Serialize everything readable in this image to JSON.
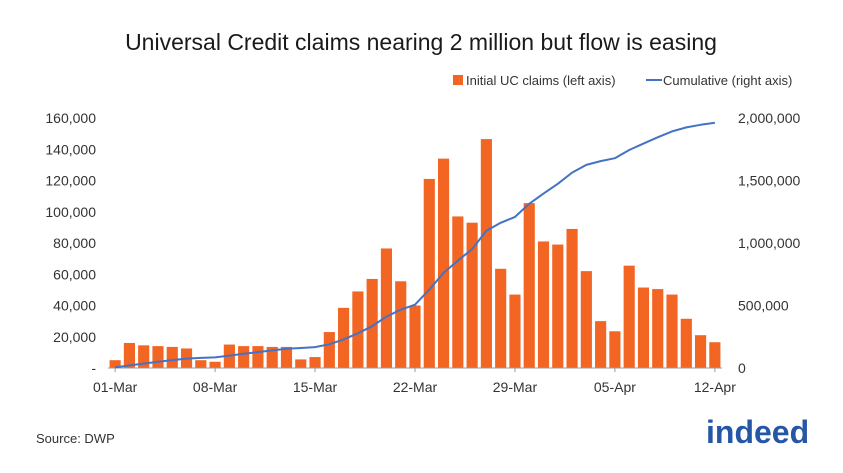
{
  "chart_data": {
    "type": "bar",
    "title": "Universal Credit claims nearing 2 million but flow is easing",
    "source": "Source: DWP",
    "logo_text": "indeed",
    "legend": [
      "Initial UC claims (left axis)",
      "Cumulative (right axis)"
    ],
    "legend_position": "top-right",
    "x_tick_labels": [
      "01-Mar",
      "08-Mar",
      "15-Mar",
      "22-Mar",
      "29-Mar",
      "05-Apr",
      "12-Apr"
    ],
    "left_axis": {
      "ylim": [
        0,
        160000
      ],
      "tick_labels": [
        "-",
        "20,000",
        "40,000",
        "60,000",
        "80,000",
        "100,000",
        "120,000",
        "140,000",
        "160,000"
      ]
    },
    "right_axis": {
      "ylim": [
        0,
        2000000
      ],
      "tick_labels": [
        "0",
        "500,000",
        "1,000,000",
        "1,500,000",
        "2,000,000"
      ]
    },
    "categories": [
      "01-Mar",
      "02-Mar",
      "03-Mar",
      "04-Mar",
      "05-Mar",
      "06-Mar",
      "07-Mar",
      "08-Mar",
      "09-Mar",
      "10-Mar",
      "11-Mar",
      "12-Mar",
      "13-Mar",
      "14-Mar",
      "15-Mar",
      "16-Mar",
      "17-Mar",
      "18-Mar",
      "19-Mar",
      "20-Mar",
      "21-Mar",
      "22-Mar",
      "23-Mar",
      "24-Mar",
      "25-Mar",
      "26-Mar",
      "27-Mar",
      "28-Mar",
      "29-Mar",
      "30-Mar",
      "31-Mar",
      "01-Apr",
      "02-Apr",
      "03-Apr",
      "04-Apr",
      "05-Apr",
      "06-Apr",
      "07-Apr",
      "08-Apr",
      "09-Apr",
      "10-Apr",
      "11-Apr",
      "12-Apr"
    ],
    "series": [
      {
        "name": "Initial UC claims (left axis)",
        "type": "bar",
        "axis": "left",
        "color": "#f26522",
        "values": [
          5000,
          16000,
          14500,
          14000,
          13500,
          12500,
          5000,
          4000,
          15000,
          14000,
          14000,
          13500,
          13500,
          5500,
          7000,
          23000,
          38500,
          49000,
          57000,
          76500,
          55500,
          40000,
          121000,
          134000,
          97000,
          93000,
          146500,
          63500,
          47000,
          105500,
          81000,
          79000,
          89000,
          62000,
          30000,
          23500,
          65500,
          51500,
          50500,
          47000,
          31500,
          21000,
          16500
        ]
      },
      {
        "name": "Cumulative (right axis)",
        "type": "line",
        "axis": "right",
        "color": "#4472c4",
        "values": [
          5000,
          21000,
          35500,
          49500,
          63000,
          75500,
          80500,
          84500,
          99500,
          113500,
          127500,
          141000,
          154500,
          160000,
          167000,
          190000,
          228500,
          277500,
          334500,
          411000,
          466500,
          506500,
          627500,
          761500,
          858500,
          951500,
          1098000,
          1161500,
          1208500,
          1314000,
          1395000,
          1474000,
          1563000,
          1625000,
          1655000,
          1678500,
          1744000,
          1795500,
          1846000,
          1893000,
          1924500,
          1945500,
          1962000
        ]
      }
    ]
  }
}
